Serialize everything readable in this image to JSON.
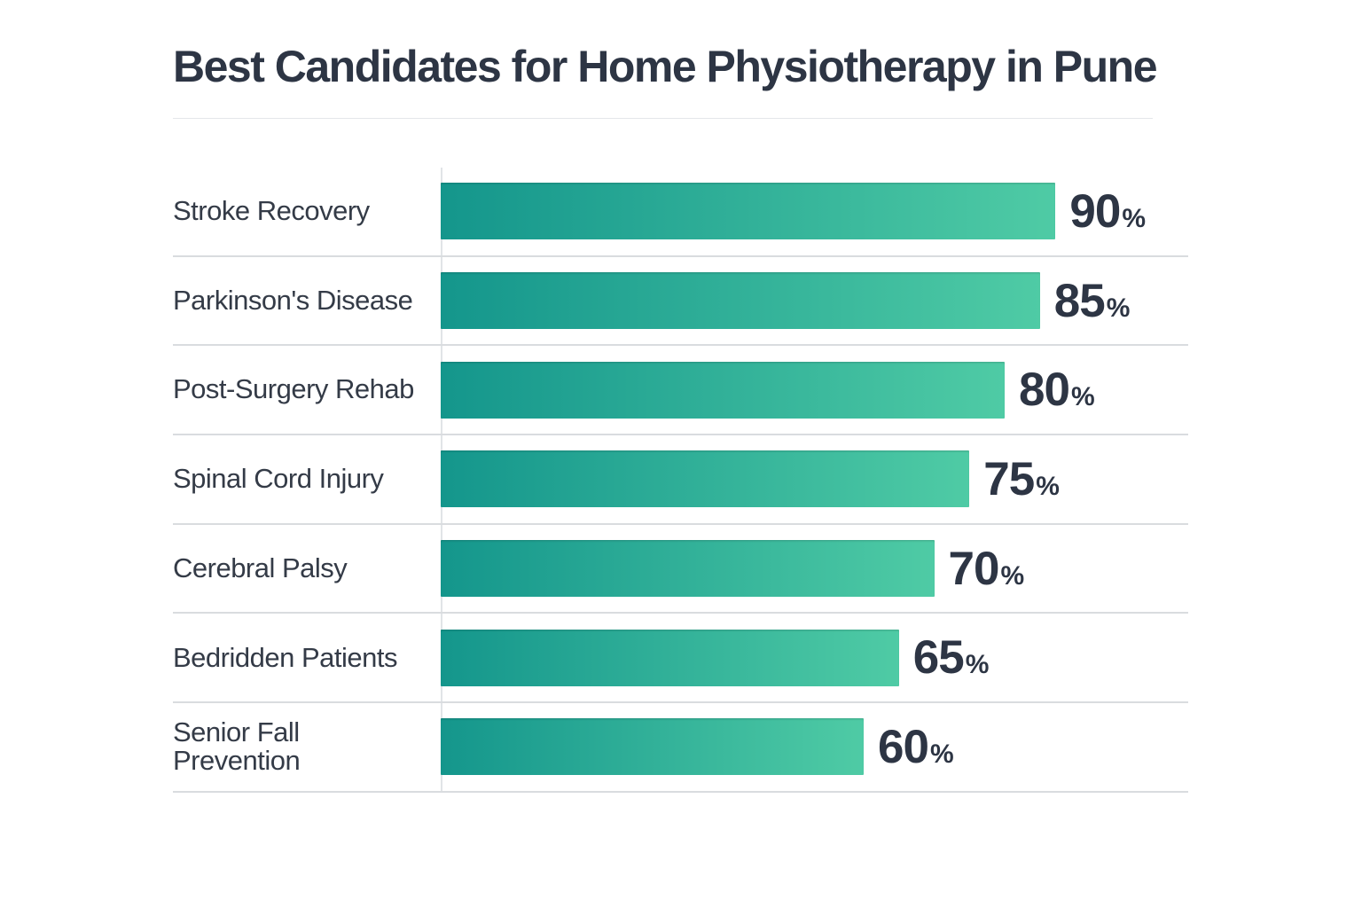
{
  "title": "Best Candidates for Home Physiotherapy in Pune",
  "colors": {
    "background": "#ffffff",
    "title_text": "#2d3544",
    "label_text": "#343b47",
    "separator": "#d9dcdf",
    "axis_line": "#e1e4e7",
    "bar_gradient_start": "#14968c",
    "bar_gradient_end": "#4fcba5"
  },
  "chart_data": {
    "type": "bar",
    "orientation": "horizontal",
    "title": "Best Candidates for Home Physiotherapy in Pune",
    "categories": [
      "Stroke Recovery",
      "Parkinson's Disease",
      "Post-Surgery Rehab",
      "Spinal Cord Injury",
      "Cerebral Palsy",
      "Bedridden Patients",
      "Senior Fall Prevention"
    ],
    "values": [
      90,
      85,
      80,
      75,
      70,
      65,
      60
    ],
    "value_suffix": "%",
    "xlabel": "",
    "ylabel": "",
    "xlim": [
      0,
      100
    ],
    "grid": false,
    "legend": false,
    "value_labels_shown": true
  }
}
